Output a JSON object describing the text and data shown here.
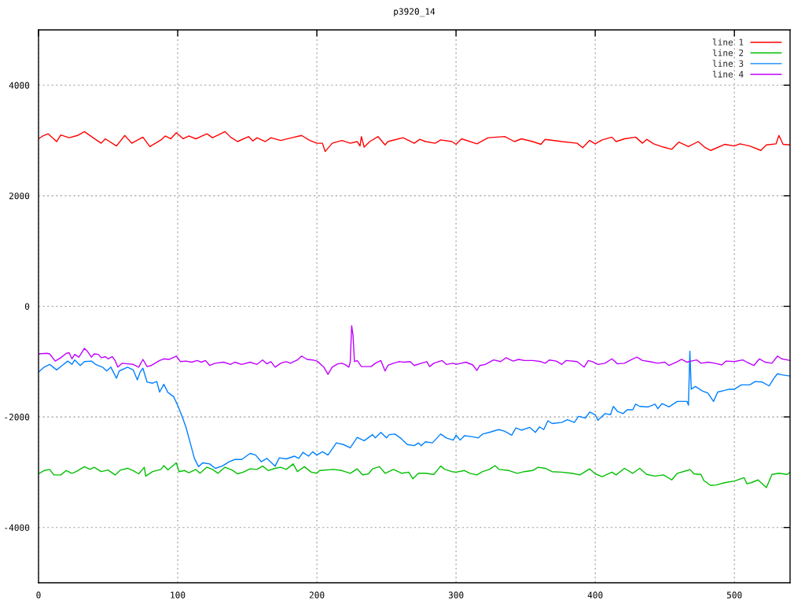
{
  "chart_data": {
    "type": "line",
    "title": "p3920_14",
    "xlim": [
      0,
      540
    ],
    "ylim": [
      -5000,
      5000
    ],
    "xticks": [
      0,
      100,
      200,
      300,
      400,
      500
    ],
    "yticks": [
      -4000,
      -2000,
      0,
      2000,
      4000
    ],
    "grid": true,
    "legend": "top right",
    "line_style": "solid",
    "series": [
      {
        "name": "line 1",
        "color": "#ff0000",
        "x": [
          0,
          3,
          7,
          13,
          16,
          22,
          28,
          33,
          38,
          45,
          48,
          56,
          62,
          67,
          75,
          80,
          88,
          91,
          95,
          99,
          104,
          108,
          113,
          121,
          125,
          130,
          134,
          138,
          143,
          151,
          154,
          157,
          163,
          167,
          174,
          182,
          189,
          195,
          200,
          204,
          206,
          211,
          218,
          224,
          229,
          231,
          232,
          234,
          238,
          244,
          249,
          251,
          262,
          270,
          274,
          278,
          285,
          289,
          297,
          300,
          304,
          315,
          323,
          335,
          342,
          347,
          355,
          361,
          364,
          376,
          387,
          391,
          396,
          400,
          405,
          412,
          415,
          421,
          429,
          434,
          437,
          442,
          449,
          455,
          460,
          467,
          474,
          479,
          483,
          493,
          500,
          504,
          511,
          519,
          523,
          530,
          532,
          535,
          540
        ],
        "values": [
          3030,
          3080,
          3120,
          2980,
          3100,
          3050,
          3090,
          3160,
          3070,
          2950,
          3030,
          2900,
          3090,
          2950,
          3060,
          2890,
          3010,
          3080,
          3030,
          3140,
          3030,
          3080,
          3030,
          3120,
          3050,
          3110,
          3160,
          3060,
          2980,
          3070,
          2990,
          3050,
          2980,
          3050,
          3000,
          3050,
          3090,
          3000,
          2950,
          2950,
          2800,
          2950,
          3000,
          2950,
          2980,
          2900,
          3070,
          2880,
          2980,
          3070,
          2920,
          2980,
          3050,
          2950,
          3020,
          2980,
          2950,
          3010,
          2980,
          2930,
          3030,
          2940,
          3050,
          3070,
          2980,
          3030,
          2980,
          2930,
          3020,
          2980,
          2950,
          2870,
          3000,
          2940,
          3010,
          3060,
          2980,
          3030,
          3060,
          2950,
          3020,
          2940,
          2880,
          2840,
          2970,
          2890,
          2980,
          2870,
          2820,
          2930,
          2900,
          2940,
          2900,
          2820,
          2920,
          2940,
          3090,
          2930,
          2920
        ]
      },
      {
        "name": "line 2",
        "color": "#00c000",
        "x": [
          0,
          4,
          8,
          11,
          16,
          20,
          24,
          27,
          33,
          37,
          40,
          45,
          50,
          55,
          59,
          64,
          68,
          72,
          76,
          77,
          82,
          88,
          90,
          93,
          99,
          101,
          105,
          108,
          113,
          116,
          121,
          125,
          129,
          134,
          139,
          143,
          147,
          152,
          157,
          161,
          165,
          170,
          174,
          178,
          183,
          186,
          191,
          196,
          200,
          202,
          212,
          218,
          224,
          229,
          233,
          237,
          240,
          245,
          249,
          255,
          261,
          266,
          269,
          273,
          278,
          284,
          289,
          292,
          297,
          300,
          306,
          310,
          315,
          319,
          324,
          328,
          331,
          338,
          344,
          349,
          355,
          359,
          364,
          369,
          376,
          383,
          389,
          396,
          400,
          405,
          412,
          415,
          421,
          427,
          432,
          437,
          443,
          449,
          455,
          459,
          466,
          468,
          471,
          476,
          478,
          483,
          487,
          493,
          500,
          507,
          509,
          512,
          517,
          523,
          527,
          532,
          538,
          540
        ],
        "values": [
          -3030,
          -2970,
          -2950,
          -3050,
          -3050,
          -2970,
          -3020,
          -2990,
          -2900,
          -2950,
          -2910,
          -2990,
          -2960,
          -3050,
          -2960,
          -2930,
          -2970,
          -3030,
          -2910,
          -3070,
          -2990,
          -2950,
          -2880,
          -2960,
          -2830,
          -2990,
          -2970,
          -3010,
          -2950,
          -3020,
          -2910,
          -2950,
          -3020,
          -2910,
          -2960,
          -3030,
          -3000,
          -2940,
          -2950,
          -2890,
          -2970,
          -2930,
          -2910,
          -2950,
          -2850,
          -2990,
          -2900,
          -3000,
          -3020,
          -2970,
          -2950,
          -2970,
          -3020,
          -2940,
          -3050,
          -3030,
          -2940,
          -2900,
          -3020,
          -2950,
          -3020,
          -3000,
          -3120,
          -3020,
          -3020,
          -3040,
          -2890,
          -2950,
          -2990,
          -3000,
          -2970,
          -3020,
          -3050,
          -2990,
          -2950,
          -2880,
          -2950,
          -2970,
          -3020,
          -2990,
          -2970,
          -2910,
          -2930,
          -2990,
          -3000,
          -3020,
          -3050,
          -2940,
          -3030,
          -3080,
          -3000,
          -3050,
          -2930,
          -3020,
          -2930,
          -3040,
          -3070,
          -3050,
          -3140,
          -3020,
          -2970,
          -2950,
          -3030,
          -3040,
          -3150,
          -3240,
          -3230,
          -3190,
          -3160,
          -3100,
          -3210,
          -3190,
          -3140,
          -3280,
          -3040,
          -3020,
          -3040,
          -3000
        ]
      },
      {
        "name": "line 3",
        "color": "#0080ff",
        "x": [
          0,
          4,
          8,
          10,
          13,
          17,
          21,
          24,
          26,
          30,
          33,
          38,
          41,
          46,
          49,
          52,
          56,
          58,
          64,
          68,
          71,
          73,
          75,
          78,
          82,
          85,
          87,
          90,
          93,
          97,
          100,
          103,
          106,
          109,
          112,
          115,
          118,
          123,
          127,
          132,
          137,
          141,
          146,
          152,
          156,
          160,
          164,
          170,
          173,
          178,
          184,
          187,
          190,
          194,
          197,
          200,
          204,
          208,
          214,
          219,
          224,
          229,
          234,
          240,
          242,
          246,
          250,
          252,
          256,
          260,
          265,
          270,
          273,
          275,
          278,
          283,
          289,
          293,
          298,
          300,
          303,
          306,
          312,
          316,
          319,
          324,
          329,
          331,
          335,
          340,
          343,
          347,
          353,
          357,
          360,
          363,
          366,
          369,
          376,
          380,
          385,
          388,
          393,
          396,
          400,
          402,
          407,
          411,
          413,
          416,
          420,
          423,
          427,
          429,
          432,
          438,
          443,
          445,
          448,
          453,
          459,
          462,
          466,
          467,
          468,
          469,
          472,
          477,
          481,
          485,
          488,
          493,
          496,
          500,
          505,
          511,
          515,
          520,
          525,
          529,
          531,
          534,
          540
        ],
        "values": [
          -1190,
          -1100,
          -1050,
          -1090,
          -1150,
          -1070,
          -990,
          -1050,
          -970,
          -1070,
          -1000,
          -990,
          -1050,
          -1100,
          -1170,
          -1100,
          -1300,
          -1170,
          -1100,
          -1150,
          -1330,
          -1190,
          -1120,
          -1370,
          -1390,
          -1360,
          -1550,
          -1410,
          -1560,
          -1630,
          -1790,
          -1980,
          -2190,
          -2470,
          -2750,
          -2900,
          -2830,
          -2850,
          -2930,
          -2890,
          -2810,
          -2770,
          -2770,
          -2660,
          -2690,
          -2810,
          -2750,
          -2890,
          -2740,
          -2760,
          -2710,
          -2750,
          -2640,
          -2710,
          -2630,
          -2690,
          -2630,
          -2690,
          -2470,
          -2500,
          -2560,
          -2370,
          -2430,
          -2320,
          -2380,
          -2280,
          -2380,
          -2320,
          -2310,
          -2380,
          -2500,
          -2520,
          -2470,
          -2520,
          -2450,
          -2470,
          -2310,
          -2380,
          -2420,
          -2330,
          -2420,
          -2340,
          -2360,
          -2380,
          -2310,
          -2280,
          -2240,
          -2230,
          -2260,
          -2330,
          -2200,
          -2240,
          -2190,
          -2280,
          -2180,
          -2230,
          -2070,
          -2120,
          -2100,
          -2050,
          -2100,
          -1990,
          -2020,
          -1910,
          -1960,
          -2060,
          -1940,
          -1960,
          -1810,
          -1900,
          -1940,
          -1870,
          -1870,
          -1770,
          -1810,
          -1820,
          -1770,
          -1850,
          -1760,
          -1820,
          -1720,
          -1720,
          -1720,
          -1790,
          -810,
          -1500,
          -1450,
          -1530,
          -1570,
          -1720,
          -1550,
          -1520,
          -1500,
          -1500,
          -1420,
          -1420,
          -1360,
          -1370,
          -1440,
          -1280,
          -1220,
          -1240,
          -1260
        ]
      },
      {
        "name": "line 4",
        "color": "#c000ff",
        "x": [
          0,
          6,
          8,
          12,
          16,
          20,
          22,
          24,
          26,
          29,
          33,
          35,
          38,
          40,
          43,
          45,
          48,
          50,
          53,
          55,
          57,
          60,
          64,
          68,
          72,
          75,
          78,
          81,
          87,
          90,
          94,
          99,
          102,
          106,
          110,
          114,
          117,
          120,
          123,
          127,
          133,
          138,
          141,
          146,
          152,
          157,
          161,
          164,
          167,
          170,
          174,
          178,
          181,
          186,
          189,
          193,
          197,
          200,
          202,
          205,
          208,
          211,
          215,
          218,
          220,
          223,
          224,
          225,
          226,
          227,
          229,
          232,
          239,
          242,
          246,
          249,
          251,
          255,
          259,
          263,
          267,
          270,
          275,
          279,
          281,
          284,
          290,
          293,
          298,
          300,
          307,
          312,
          315,
          317,
          321,
          327,
          332,
          336,
          341,
          345,
          349,
          355,
          361,
          364,
          367,
          372,
          376,
          379,
          387,
          392,
          395,
          398,
          402,
          407,
          412,
          416,
          421,
          427,
          430,
          434,
          439,
          445,
          450,
          453,
          459,
          462,
          466,
          469,
          473,
          476,
          481,
          486,
          491,
          494,
          500,
          506,
          509,
          514,
          518,
          522,
          527,
          531,
          534,
          538,
          540
        ],
        "values": [
          -860,
          -850,
          -860,
          -990,
          -930,
          -850,
          -840,
          -950,
          -870,
          -920,
          -760,
          -810,
          -920,
          -860,
          -870,
          -930,
          -910,
          -950,
          -910,
          -980,
          -1100,
          -1030,
          -1040,
          -1050,
          -1100,
          -960,
          -1090,
          -1070,
          -980,
          -950,
          -960,
          -900,
          -1000,
          -990,
          -1010,
          -980,
          -1010,
          -980,
          -1070,
          -1030,
          -1010,
          -1050,
          -1010,
          -1050,
          -1010,
          -1050,
          -970,
          -1040,
          -1000,
          -1100,
          -1030,
          -1000,
          -1030,
          -970,
          -900,
          -960,
          -970,
          -990,
          -1030,
          -1100,
          -1230,
          -1100,
          -1040,
          -1030,
          -1050,
          -1100,
          -1000,
          -350,
          -530,
          -1000,
          -980,
          -1090,
          -1090,
          -1030,
          -980,
          -1170,
          -1070,
          -1030,
          -1000,
          -1010,
          -1000,
          -1070,
          -1030,
          -1000,
          -1090,
          -1030,
          -980,
          -1050,
          -1030,
          -1050,
          -1010,
          -1060,
          -1160,
          -1070,
          -1050,
          -970,
          -1000,
          -930,
          -990,
          -960,
          -980,
          -980,
          -1000,
          -1030,
          -970,
          -990,
          -1050,
          -980,
          -1000,
          -1100,
          -980,
          -1000,
          -1050,
          -1030,
          -950,
          -1040,
          -1030,
          -950,
          -920,
          -980,
          -1000,
          -1030,
          -1010,
          -1070,
          -1000,
          -960,
          -1010,
          -990,
          -970,
          -1030,
          -1010,
          -1030,
          -1060,
          -990,
          -1000,
          -970,
          -1010,
          -1070,
          -950,
          -1010,
          -1030,
          -900,
          -950,
          -970,
          -980
        ]
      }
    ]
  }
}
